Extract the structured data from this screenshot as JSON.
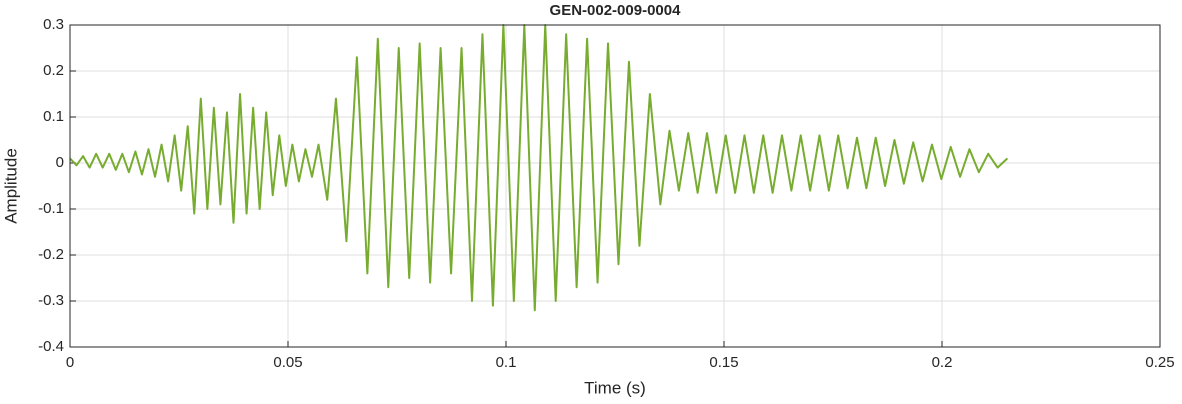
{
  "chart_data": {
    "type": "line",
    "title": "GEN-002-009-0004",
    "x_label": "Time (s)",
    "y_label": "Amplitude",
    "xlim": [
      0,
      0.25
    ],
    "xticks": [
      0,
      0.05,
      0.1,
      0.15,
      0.2,
      0.25
    ],
    "ylim": [
      -0.4,
      0.3
    ],
    "yticks": [
      -0.4,
      -0.3,
      -0.2,
      -0.1,
      0,
      0.1,
      0.2,
      0.3
    ],
    "grid": true,
    "series": [
      {
        "color": "#77ac30",
        "x": [
          0,
          0.0015,
          0.003,
          0.0045,
          0.006,
          0.0075,
          0.009,
          0.0105,
          0.012,
          0.0135,
          0.015,
          0.0165,
          0.018,
          0.0195,
          0.021,
          0.0225,
          0.024,
          0.0255,
          0.027,
          0.0285,
          0.03,
          0.0315,
          0.033,
          0.0345,
          0.036,
          0.0375,
          0.039,
          0.0405,
          0.042,
          0.0435,
          0.045,
          0.0465,
          0.048,
          0.0495,
          0.051,
          0.0525,
          0.054,
          0.0555,
          0.057,
          0.059,
          0.061,
          0.0634,
          0.0658,
          0.0682,
          0.0706,
          0.073,
          0.0754,
          0.0778,
          0.0802,
          0.0826,
          0.085,
          0.0874,
          0.0898,
          0.0922,
          0.0946,
          0.097,
          0.0994,
          0.1018,
          0.1042,
          0.1066,
          0.109,
          0.1114,
          0.1138,
          0.1162,
          0.1186,
          0.121,
          0.1234,
          0.1258,
          0.1282,
          0.1306,
          0.133,
          0.1354,
          0.1375,
          0.13965,
          0.1418,
          0.14395,
          0.1461,
          0.14825,
          0.1504,
          0.15255,
          0.1547,
          0.15685,
          0.159,
          0.16115,
          0.1633,
          0.16545,
          0.1676,
          0.16975,
          0.1719,
          0.17405,
          0.1762,
          0.17835,
          0.1805,
          0.18265,
          0.1848,
          0.18695,
          0.1891,
          0.19125,
          0.1934,
          0.19555,
          0.1977,
          0.19985,
          0.202,
          0.20415,
          0.2063,
          0.20845,
          0.2106,
          0.21275,
          0.215
        ],
        "values": [
          0.01,
          -0.005,
          0.015,
          -0.01,
          0.02,
          -0.01,
          0.02,
          -0.015,
          0.02,
          -0.02,
          0.025,
          -0.025,
          0.03,
          -0.03,
          0.04,
          -0.04,
          0.06,
          -0.06,
          0.08,
          -0.11,
          0.14,
          -0.1,
          0.12,
          -0.09,
          0.11,
          -0.13,
          0.15,
          -0.11,
          0.12,
          -0.1,
          0.11,
          -0.07,
          0.06,
          -0.05,
          0.04,
          -0.04,
          0.03,
          -0.03,
          0.04,
          -0.08,
          0.14,
          -0.17,
          0.23,
          -0.24,
          0.27,
          -0.27,
          0.25,
          -0.25,
          0.26,
          -0.26,
          0.25,
          -0.24,
          0.25,
          -0.3,
          0.28,
          -0.31,
          0.3,
          -0.3,
          0.3,
          -0.32,
          0.3,
          -0.3,
          0.28,
          -0.27,
          0.27,
          -0.26,
          0.26,
          -0.22,
          0.22,
          -0.18,
          0.15,
          -0.09,
          0.07,
          -0.06,
          0.065,
          -0.065,
          0.065,
          -0.065,
          0.06,
          -0.065,
          0.06,
          -0.065,
          0.06,
          -0.065,
          0.06,
          -0.06,
          0.06,
          -0.06,
          0.06,
          -0.06,
          0.06,
          -0.055,
          0.055,
          -0.055,
          0.055,
          -0.05,
          0.05,
          -0.045,
          0.045,
          -0.04,
          0.04,
          -0.035,
          0.035,
          -0.03,
          0.03,
          -0.02,
          0.02,
          -0.01,
          0.01
        ]
      }
    ]
  }
}
